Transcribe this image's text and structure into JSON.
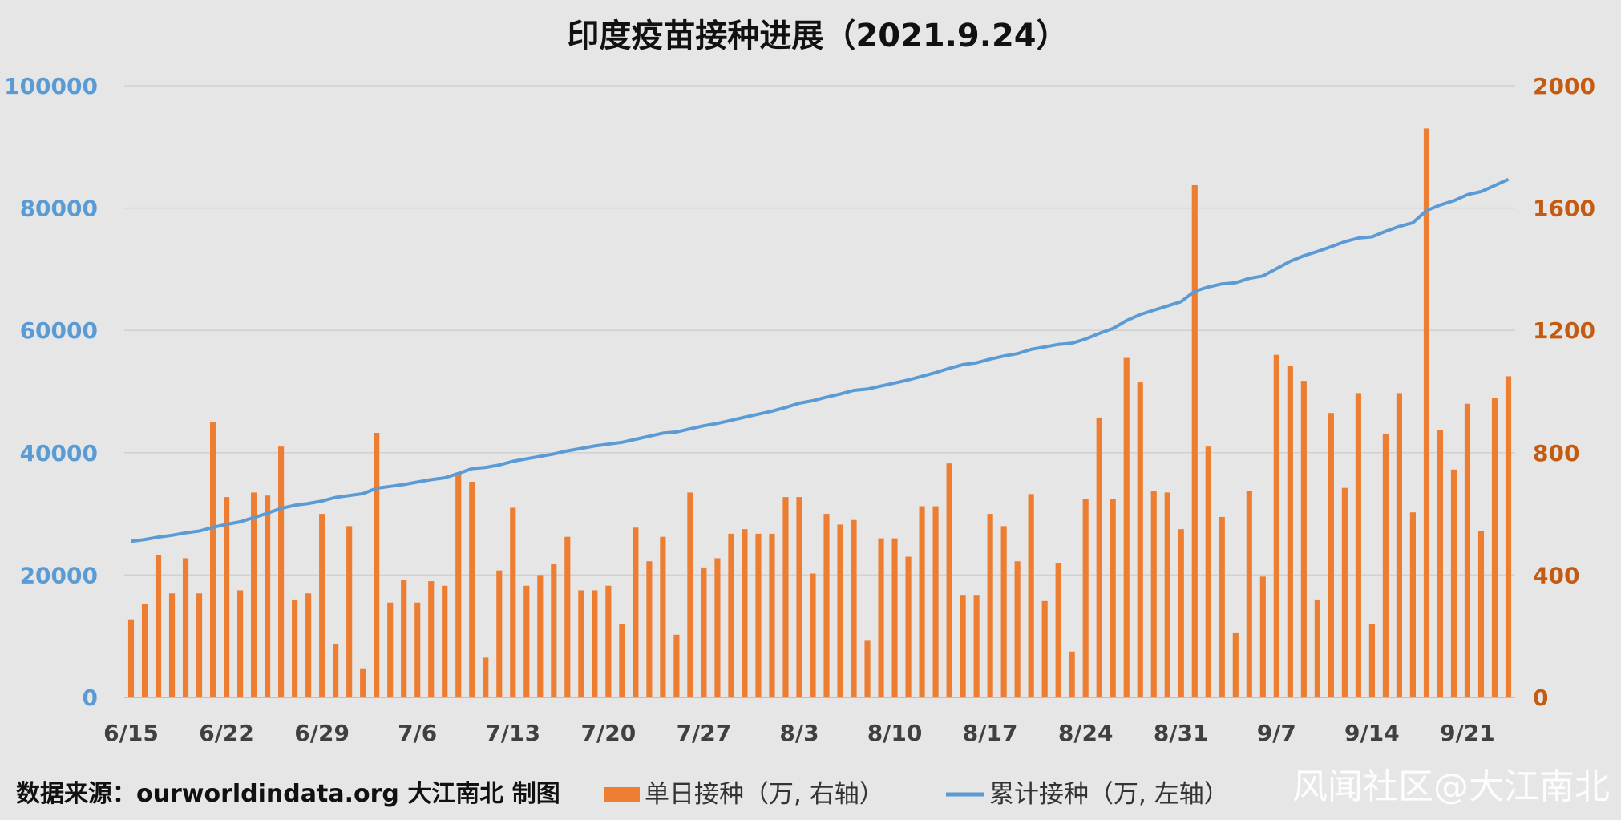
{
  "chart_data": {
    "type": "bar",
    "title": "印度疫苗接种进展（2021.9.24）",
    "x_tick_labels": [
      "6/15",
      "6/22",
      "6/29",
      "7/6",
      "7/13",
      "7/20",
      "7/27",
      "8/3",
      "8/10",
      "8/17",
      "8/24",
      "8/31",
      "9/7",
      "9/14",
      "9/21"
    ],
    "y_left_ticks": [
      "0",
      "20000",
      "40000",
      "60000",
      "80000",
      "100000"
    ],
    "y_right_ticks": [
      "0",
      "400",
      "800",
      "1200",
      "1600",
      "2000"
    ],
    "ylim_left": [
      0,
      100000
    ],
    "ylim_right": [
      0,
      2000
    ],
    "grid": true,
    "legend_position": "bottom",
    "series": [
      {
        "name": "单日接种（万, 右轴）",
        "axis": "right",
        "type": "bar",
        "color": "#ed7d31",
        "values": [
          255,
          305,
          465,
          340,
          455,
          340,
          900,
          655,
          350,
          670,
          660,
          820,
          320,
          340,
          600,
          175,
          560,
          95,
          865,
          310,
          385,
          310,
          380,
          365,
          730,
          705,
          130,
          415,
          620,
          365,
          400,
          435,
          525,
          350,
          350,
          365,
          240,
          555,
          445,
          525,
          205,
          670,
          425,
          455,
          535,
          550,
          535,
          535,
          655,
          655,
          405,
          600,
          565,
          580,
          185,
          520,
          520,
          460,
          625,
          625,
          765,
          335,
          335,
          600,
          560,
          445,
          665,
          315,
          440,
          150,
          650,
          915,
          650,
          1110,
          1030,
          675,
          670,
          550,
          1675,
          820,
          590,
          210,
          675,
          395,
          1120,
          1085,
          1035,
          320,
          930,
          685,
          995,
          240,
          860,
          995,
          605,
          1860,
          875,
          745,
          960,
          545,
          980,
          1050
        ]
      },
      {
        "name": "累计接种（万, 左轴）",
        "axis": "left",
        "type": "line",
        "color": "#5b9bd5",
        "values": [
          25500,
          25800,
          26200,
          26500,
          26900,
          27200,
          27800,
          28300,
          28700,
          29400,
          30100,
          30900,
          31400,
          31700,
          32100,
          32700,
          33000,
          33300,
          34200,
          34500,
          34800,
          35200,
          35600,
          35900,
          36600,
          37400,
          37600,
          38000,
          38600,
          39000,
          39400,
          39800,
          40300,
          40700,
          41100,
          41400,
          41700,
          42200,
          42700,
          43200,
          43400,
          43900,
          44400,
          44800,
          45300,
          45800,
          46300,
          46800,
          47400,
          48100,
          48500,
          49100,
          49600,
          50200,
          50400,
          50900,
          51400,
          51900,
          52500,
          53100,
          53800,
          54400,
          54700,
          55300,
          55800,
          56200,
          56900,
          57300,
          57700,
          57900,
          58600,
          59500,
          60300,
          61600,
          62600,
          63300,
          64000,
          64700,
          66400,
          67100,
          67600,
          67800,
          68500,
          68900,
          70100,
          71300,
          72200,
          72900,
          73700,
          74500,
          75100,
          75300,
          76200,
          77000,
          77600,
          79600,
          80500,
          81200,
          82200,
          82700,
          83700,
          84700
        ]
      }
    ]
  },
  "footer": {
    "source": "数据来源：ourworldindata.org 大江南北 制图",
    "watermark": "风闻社区@大江南北"
  }
}
